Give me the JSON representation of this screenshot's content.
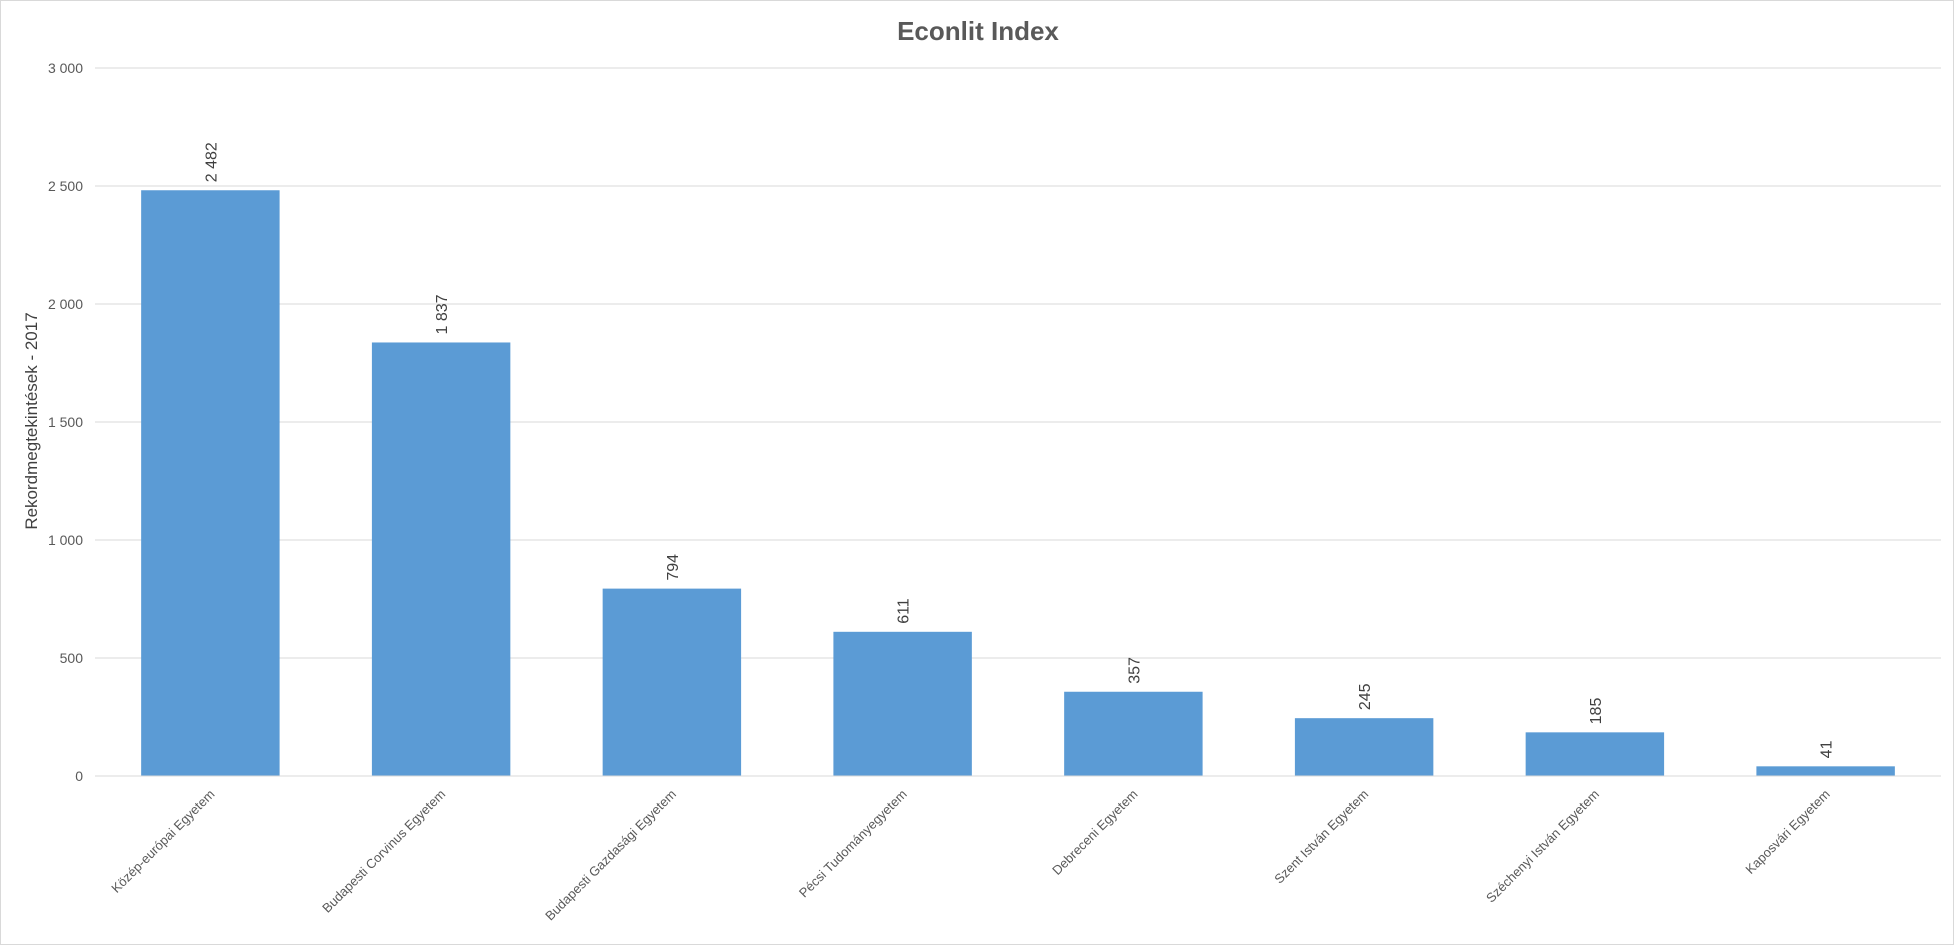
{
  "chart_data": {
    "type": "bar",
    "title": "Econlit Index",
    "xlabel": "",
    "ylabel": "Rekordmegtekintések - 2017",
    "categories": [
      "Közép-európai Egyetem",
      "Budapesti Corvinus Egyetem",
      "Budapesti Gazdasági Egyetem",
      "Pécsi Tudományegyetem",
      "Debreceni Egyetem",
      "Szent István Egyetem",
      "Széchenyi István Egyetem",
      "Kaposvári Egyetem"
    ],
    "values": [
      2482,
      1837,
      794,
      611,
      357,
      245,
      185,
      41
    ],
    "data_labels": [
      "2 482",
      "1 837",
      "794",
      "611",
      "357",
      "245",
      "185",
      "41"
    ],
    "ylim": [
      0,
      3000
    ],
    "yticks": [
      0,
      500,
      1000,
      1500,
      2000,
      2500,
      3000
    ],
    "ytick_labels": [
      "0",
      "500",
      "1 000",
      "1 500",
      "2 000",
      "2 500",
      "3 000"
    ],
    "grid": true,
    "legend": "none",
    "bar_color": "#5b9bd5"
  }
}
